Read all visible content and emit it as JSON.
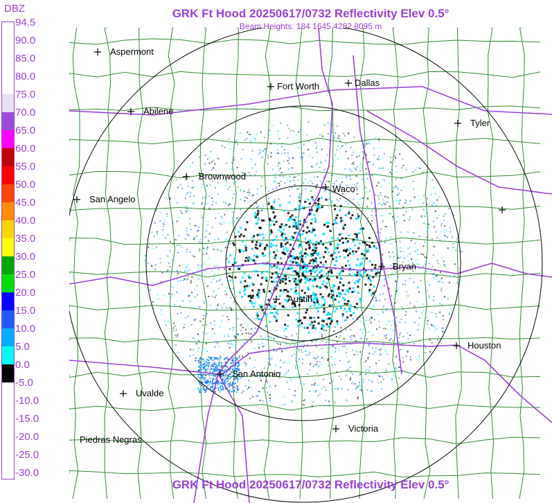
{
  "title": "GRK Ft Hood 20250617/0732 Reflectivity Elev 0.5°",
  "subtitle": "Beam Heights: 184 1645 4282 8095 m",
  "legend": {
    "unit": "DBZ",
    "labels": [
      "94.5",
      "90.0",
      "85.0",
      "80.0",
      "75.0",
      "70.0",
      "65.0",
      "60.0",
      "55.0",
      "50.0",
      "45.0",
      "40.0",
      "35.0",
      "30.0",
      "25.0",
      "20.0",
      "15.0",
      "10.0",
      "5.0",
      "0.0",
      "-5.0",
      "-10.0",
      "-15.0",
      "-20.0",
      "-25.0",
      "-30.0"
    ],
    "colors": [
      "#ffffff",
      "#ffffff",
      "#ffffff",
      "#ffffff",
      "#e8e0f0",
      "#9c4ad8",
      "#ff00ff",
      "#c00000",
      "#ff0000",
      "#ff4500",
      "#ff8c00",
      "#ffd700",
      "#ffff00",
      "#00aa00",
      "#00e000",
      "#0000ff",
      "#1e5bff",
      "#00b0ff",
      "#00ffff",
      "#000000",
      "#ffffff",
      "#ffffff",
      "#ffffff",
      "#ffffff",
      "#ffffff"
    ]
  },
  "cities": [
    {
      "name": "Aspermont",
      "marker": "plus"
    },
    {
      "name": "Fort Worth",
      "marker": "plus"
    },
    {
      "name": "Dallas",
      "marker": "plus"
    },
    {
      "name": "Abilene",
      "marker": "plus"
    },
    {
      "name": "Tyler",
      "marker": "plus"
    },
    {
      "name": "Brownwood",
      "marker": "plus"
    },
    {
      "name": "Waco",
      "marker": "plus"
    },
    {
      "name": "San Angelo",
      "marker": "plus"
    },
    {
      "name": "Bryan",
      "marker": "plus"
    },
    {
      "name": "Austin",
      "marker": "plus"
    },
    {
      "name": "Houston",
      "marker": "plus"
    },
    {
      "name": "San Antonio",
      "marker": "plus"
    },
    {
      "name": "Uvalde",
      "marker": "plus"
    },
    {
      "name": "Victoria",
      "marker": "plus"
    },
    {
      "name": "Piedras Negras",
      "marker": "none"
    },
    {
      "name": "",
      "marker": "plus"
    }
  ],
  "colors": {
    "accent": "#9b3fd6",
    "county_lines": "#2e8b2e",
    "highways": "#9b3fd6",
    "range_rings": "#000000"
  }
}
